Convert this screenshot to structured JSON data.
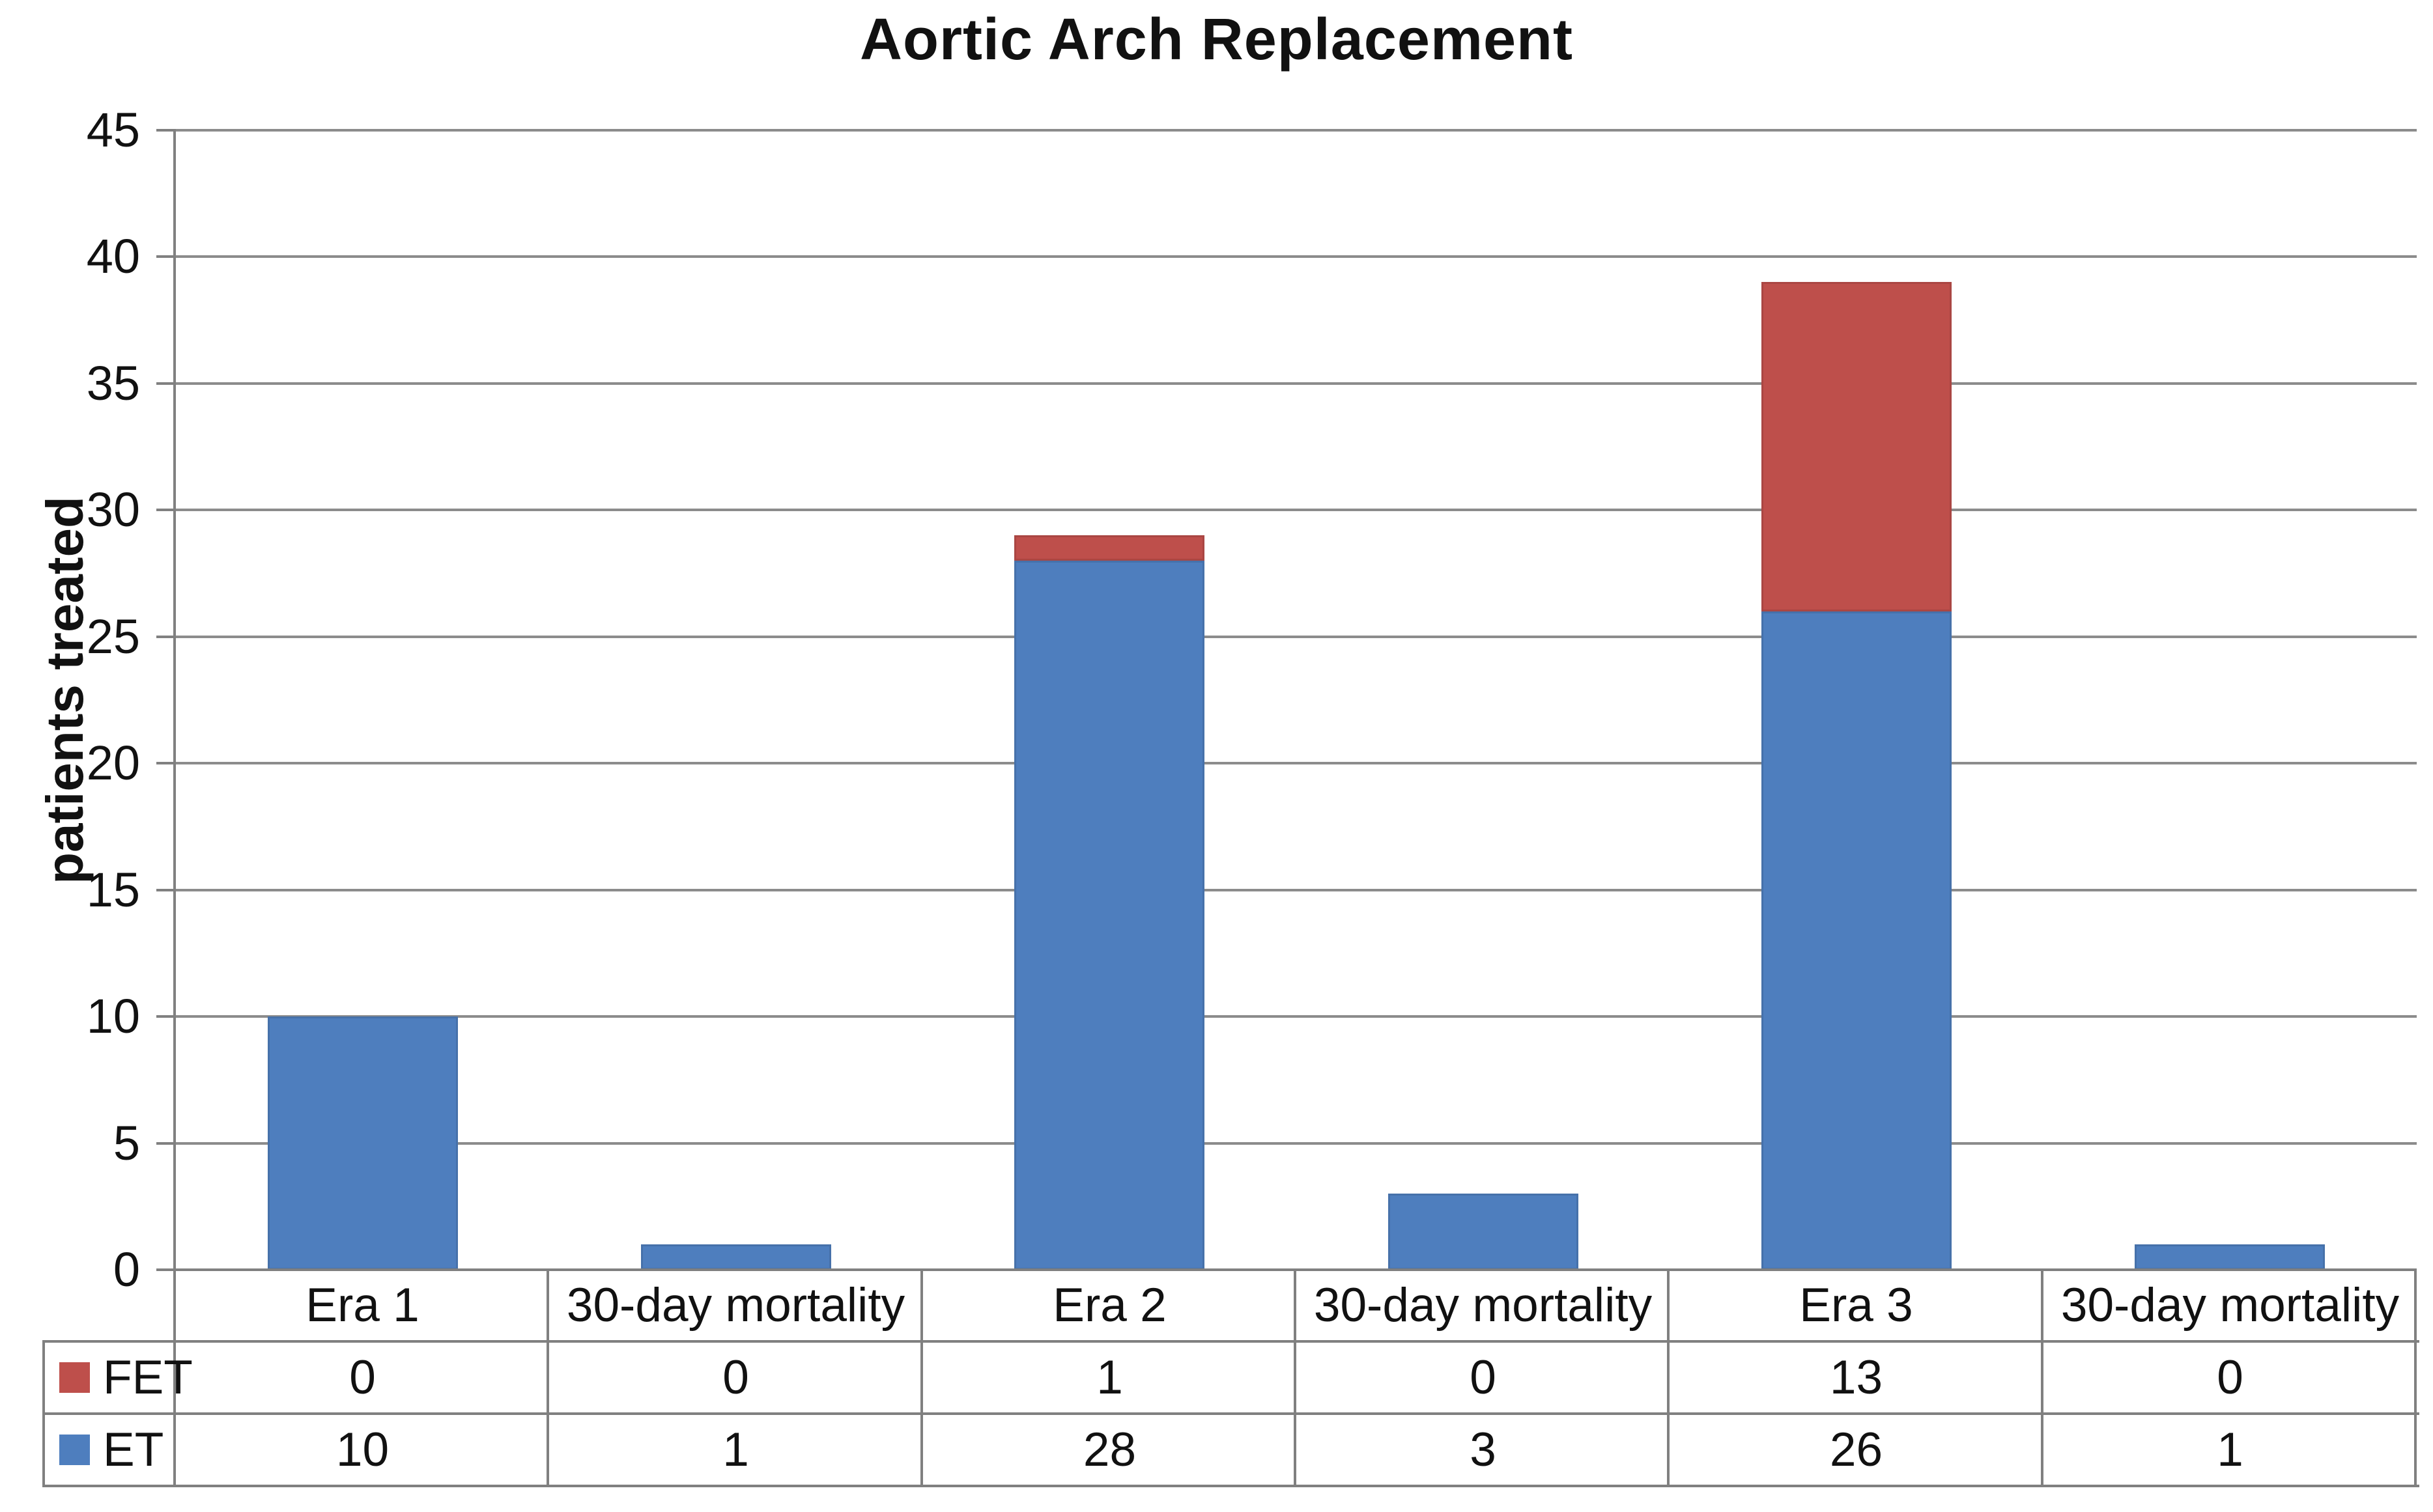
{
  "chart_data": {
    "type": "bar",
    "stacked": true,
    "title": "Aortic Arch Replacement",
    "xlabel": "",
    "ylabel": "patients treated",
    "ylim": [
      0,
      45
    ],
    "ytick_step": 5,
    "yticks": [
      0,
      5,
      10,
      15,
      20,
      25,
      30,
      35,
      40,
      45
    ],
    "grid": true,
    "legend_position": "table-left",
    "categories": [
      "Era 1",
      "30-day mortality",
      "Era 2",
      "30-day mortality",
      "Era 3",
      "30-day mortality"
    ],
    "series": [
      {
        "name": "FET",
        "color": "#BE4F4B",
        "values": [
          0,
          0,
          1,
          0,
          13,
          0
        ]
      },
      {
        "name": "ET",
        "color": "#4E7EBE",
        "values": [
          10,
          1,
          28,
          3,
          26,
          1
        ]
      }
    ],
    "colors": {
      "gridline": "#8C8C8C",
      "axis_and_table_border": "#808080",
      "text": "#111111",
      "background": "#FFFFFF"
    },
    "data_table": {
      "shown": true,
      "row_headers": [
        "FET",
        "ET"
      ],
      "rows": [
        [
          "0",
          "0",
          "1",
          "0",
          "13",
          "0"
        ],
        [
          "10",
          "1",
          "28",
          "3",
          "26",
          "1"
        ]
      ]
    }
  }
}
